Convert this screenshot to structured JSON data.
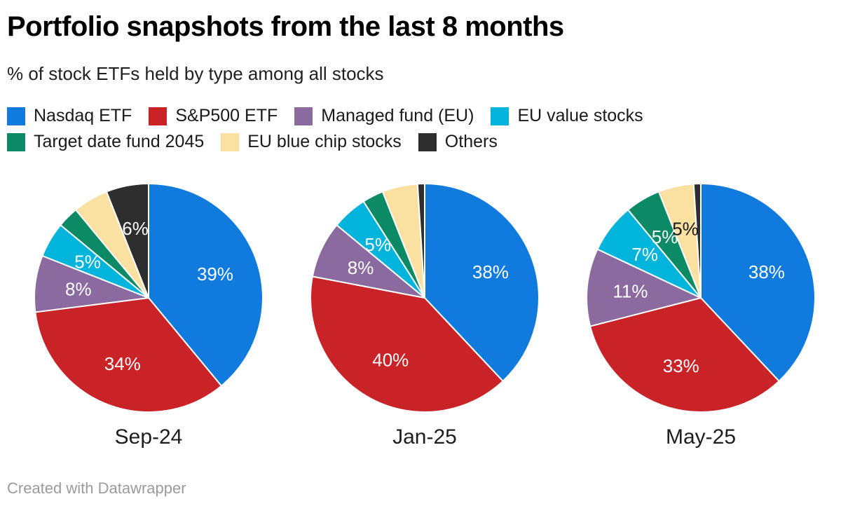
{
  "header": {
    "title": "Portfolio snapshots from the last 8 months",
    "subtitle": "% of stock ETFs held by type among all stocks"
  },
  "footer": {
    "credit": "Created with Datawrapper"
  },
  "colors": {
    "background": "#ffffff",
    "title": "#000000",
    "body_text": "#1a1a1a",
    "footer_text": "#9b9b9b",
    "slice_divider": "#ffffff"
  },
  "chart_data": {
    "type": "pie",
    "title": "Portfolio snapshots from the last 8 months",
    "subtitle": "% of stock ETFs held by type among all stocks",
    "legend_position": "top",
    "start_angle_deg": 0,
    "direction": "clockwise",
    "categories": [
      "Nasdaq ETF",
      "S&P500 ETF",
      "Managed fund (EU)",
      "EU value stocks",
      "Target date fund 2045",
      "EU blue chip stocks",
      "Others"
    ],
    "colors": [
      "#107bdd",
      "#c92227",
      "#8a6a9f",
      "#00b4db",
      "#0b8a65",
      "#fae1a1",
      "#2e2e2e"
    ],
    "label_text_colors": [
      "#ffffff",
      "#ffffff",
      "#ffffff",
      "#ffffff",
      "#ffffff",
      "#1a1a1a",
      "#ffffff"
    ],
    "pies": [
      {
        "label": "Sep-24",
        "values": [
          39,
          34,
          8,
          5,
          3,
          5,
          6
        ],
        "slice_labels": [
          "39%",
          "34%",
          "8%",
          "5%",
          "",
          "",
          "6%"
        ]
      },
      {
        "label": "Jan-25",
        "values": [
          38,
          40,
          8,
          5,
          3,
          5,
          1
        ],
        "slice_labels": [
          "38%",
          "40%",
          "8%",
          "5%",
          "",
          "",
          ""
        ]
      },
      {
        "label": "May-25",
        "values": [
          38,
          33,
          11,
          7,
          5,
          5,
          1
        ],
        "slice_labels": [
          "38%",
          "33%",
          "11%",
          "7%",
          "5%",
          "5%",
          ""
        ]
      }
    ]
  }
}
